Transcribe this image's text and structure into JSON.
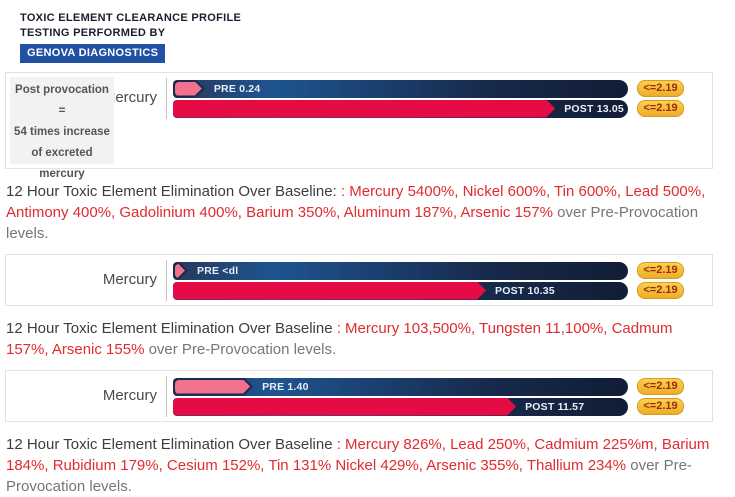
{
  "header": {
    "line1": "TOXIC ELEMENT CLEARANCE PROFILE",
    "line2": "TESTING PERFORMED BY",
    "brand": "GENOVA DIAGNOSTICS"
  },
  "colors": {
    "brand_blue": "#2051a3",
    "track_navy_dark": "#121d36",
    "track_blue": "#1e5490",
    "post_red": "#e50b45",
    "pre_pink": "#f2718f",
    "badge_yellow": "#f3c13a",
    "badge_text": "#9c2d12",
    "summary_red": "#e02b30"
  },
  "charts": [
    {
      "annotation": [
        "Post provocation",
        "=",
        "54 times increase",
        "of excreted",
        "mercury"
      ],
      "element": "Mercury",
      "pre_label": "PRE 0.24",
      "post_label": "POST 13.05",
      "pre_width_pct": 7.0,
      "post_width_pct": 84.0,
      "ref": "<=2.19"
    },
    {
      "element": "Mercury",
      "pre_label": "PRE <dl",
      "post_label": "POST 10.35",
      "pre_width_pct": 3.3,
      "post_width_pct": 68.8,
      "ref": "<=2.19"
    },
    {
      "element": "Mercury",
      "pre_label": "PRE 1.40",
      "post_label": "POST 11.57",
      "pre_width_pct": 17.6,
      "post_width_pct": 75.4,
      "ref": "<=2.19"
    }
  ],
  "paragraphs": [
    {
      "heading": "12 Hour Toxic Element Elimination Over Baseline: ",
      "red": ": Mercury 5400%, Nickel 600%, Tin 600%, Lead 500%, Antimony 400%, Gadolinium 400%, Barium 350%, Aluminum 187%, Arsenic 157%",
      "tail": " over Pre-Provocation levels."
    },
    {
      "heading": "12 Hour Toxic Element Elimination Over Baseline ",
      "red": ": Mercury 103,500%, Tungsten 11,100%, Cadmum 157%, Arsenic 155%",
      "tail": " over Pre-Provocation levels."
    },
    {
      "heading": "12 Hour Toxic Element Elimination Over Baseline ",
      "red": ": Mercury 826%, Lead 250%, Cadmium 225%m, Barium 184%, Rubidium 179%, Cesium 152%, Tin 131% Nickel 429%, Arsenic 355%, Thallium 234%",
      "tail": " over Pre-Provocation levels."
    }
  ],
  "chart_data": [
    {
      "type": "bar",
      "element": "Mercury",
      "categories": [
        "PRE",
        "POST"
      ],
      "values": [
        0.24,
        13.05
      ],
      "value_labels": [
        "PRE 0.24",
        "POST 13.05"
      ],
      "reference_range": "<=2.19",
      "annotation": "Post provocation = 54 times increase of excreted mercury"
    },
    {
      "type": "bar",
      "element": "Mercury",
      "categories": [
        "PRE",
        "POST"
      ],
      "values": [
        null,
        10.35
      ],
      "value_labels": [
        "PRE <dl",
        "POST 10.35"
      ],
      "reference_range": "<=2.19"
    },
    {
      "type": "bar",
      "element": "Mercury",
      "categories": [
        "PRE",
        "POST"
      ],
      "values": [
        1.4,
        11.57
      ],
      "value_labels": [
        "PRE 1.40",
        "POST 11.57"
      ],
      "reference_range": "<=2.19"
    }
  ]
}
